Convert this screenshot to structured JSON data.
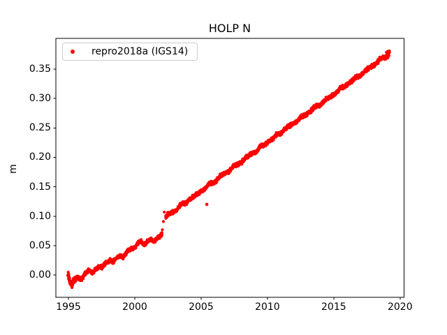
{
  "chart_data": {
    "type": "scatter",
    "title": "HOLP N",
    "xlabel": "",
    "ylabel": "m",
    "xlim": [
      1994.05,
      2020.3
    ],
    "ylim": [
      -0.0378,
      0.4022
    ],
    "xticks": [
      1995,
      2000,
      2005,
      2010,
      2015,
      2020
    ],
    "xtick_labels": [
      "1995",
      "2000",
      "2005",
      "2010",
      "2015",
      "2020"
    ],
    "yticks": [
      0.0,
      0.05,
      0.1,
      0.15,
      0.2,
      0.25,
      0.3,
      0.35
    ],
    "ytick_labels": [
      "0.00",
      "0.05",
      "0.10",
      "0.15",
      "0.20",
      "0.25",
      "0.30",
      "0.35"
    ],
    "grid": false,
    "legend_position": "upper left",
    "series": [
      {
        "name": "repro2018a (IGS14)",
        "color": "#ff0000",
        "marker": "dot",
        "trend_anchors_x": [
          1994.95,
          1995.05,
          1995.25,
          1995.45,
          1995.7,
          1995.95,
          1996.2,
          1996.5,
          1996.8,
          1997.0,
          1997.3,
          1997.5,
          1997.8,
          1998.1,
          1998.35,
          1998.6,
          1998.9,
          1999.15,
          1999.4,
          1999.7,
          1999.95,
          2000.2,
          2000.45,
          2000.7,
          2000.95,
          2001.2,
          2001.45,
          2001.7,
          2001.95,
          2002.05,
          2002.32,
          2002.6,
          2002.9,
          2003.2,
          2003.5,
          2003.8,
          2004.1,
          2004.4,
          2004.7,
          2005.0,
          2005.3,
          2005.6,
          2005.9,
          2006.2,
          2006.5,
          2006.8,
          2007.1,
          2007.4,
          2007.7,
          2008.0,
          2008.3,
          2008.6,
          2008.9,
          2009.2,
          2009.5,
          2009.8,
          2010.1,
          2010.4,
          2010.7,
          2011.0,
          2011.3,
          2011.6,
          2011.9,
          2012.2,
          2012.5,
          2012.8,
          2013.1,
          2013.4,
          2013.7,
          2014.0,
          2014.3,
          2014.6,
          2014.9,
          2015.2,
          2015.5,
          2015.8,
          2016.1,
          2016.4,
          2016.7,
          2017.0,
          2017.3,
          2017.6,
          2017.9,
          2018.2,
          2018.5,
          2018.8,
          2019.0,
          2019.1,
          2019.2
        ],
        "trend_anchors_y": [
          0.004,
          -0.006,
          -0.016,
          -0.009,
          -0.005,
          -0.007,
          0.002,
          0.007,
          0.003,
          0.01,
          0.014,
          0.011,
          0.02,
          0.026,
          0.022,
          0.027,
          0.034,
          0.031,
          0.039,
          0.044,
          0.047,
          0.054,
          0.057,
          0.05,
          0.058,
          0.062,
          0.055,
          0.062,
          0.068,
          0.073,
          0.099,
          0.103,
          0.108,
          0.112,
          0.12,
          0.122,
          0.13,
          0.132,
          0.137,
          0.144,
          0.147,
          0.154,
          0.157,
          0.162,
          0.169,
          0.172,
          0.177,
          0.184,
          0.187,
          0.192,
          0.198,
          0.202,
          0.208,
          0.211,
          0.218,
          0.221,
          0.228,
          0.231,
          0.238,
          0.241,
          0.248,
          0.251,
          0.257,
          0.261,
          0.267,
          0.271,
          0.277,
          0.281,
          0.287,
          0.29,
          0.297,
          0.3,
          0.306,
          0.31,
          0.317,
          0.32,
          0.326,
          0.33,
          0.336,
          0.34,
          0.346,
          0.35,
          0.356,
          0.36,
          0.366,
          0.37,
          0.374,
          0.376,
          0.377
        ],
        "gap_x": [
          2002.05,
          2002.32
        ],
        "sparse_points": [
          [
            2002.08,
            0.077
          ],
          [
            2002.16,
            0.091
          ],
          [
            2002.22,
            0.107
          ]
        ],
        "outlier_points": [
          [
            2005.43,
            0.12
          ]
        ],
        "band_halfwidth": 0.0022,
        "annual_wiggle_amplitude": 0.0012,
        "samples_per_year": 100,
        "thick_regions": [
          [
            1994.9,
            1995.55,
            1.5
          ],
          [
            2018.9,
            2019.25,
            1.9
          ]
        ]
      }
    ]
  }
}
